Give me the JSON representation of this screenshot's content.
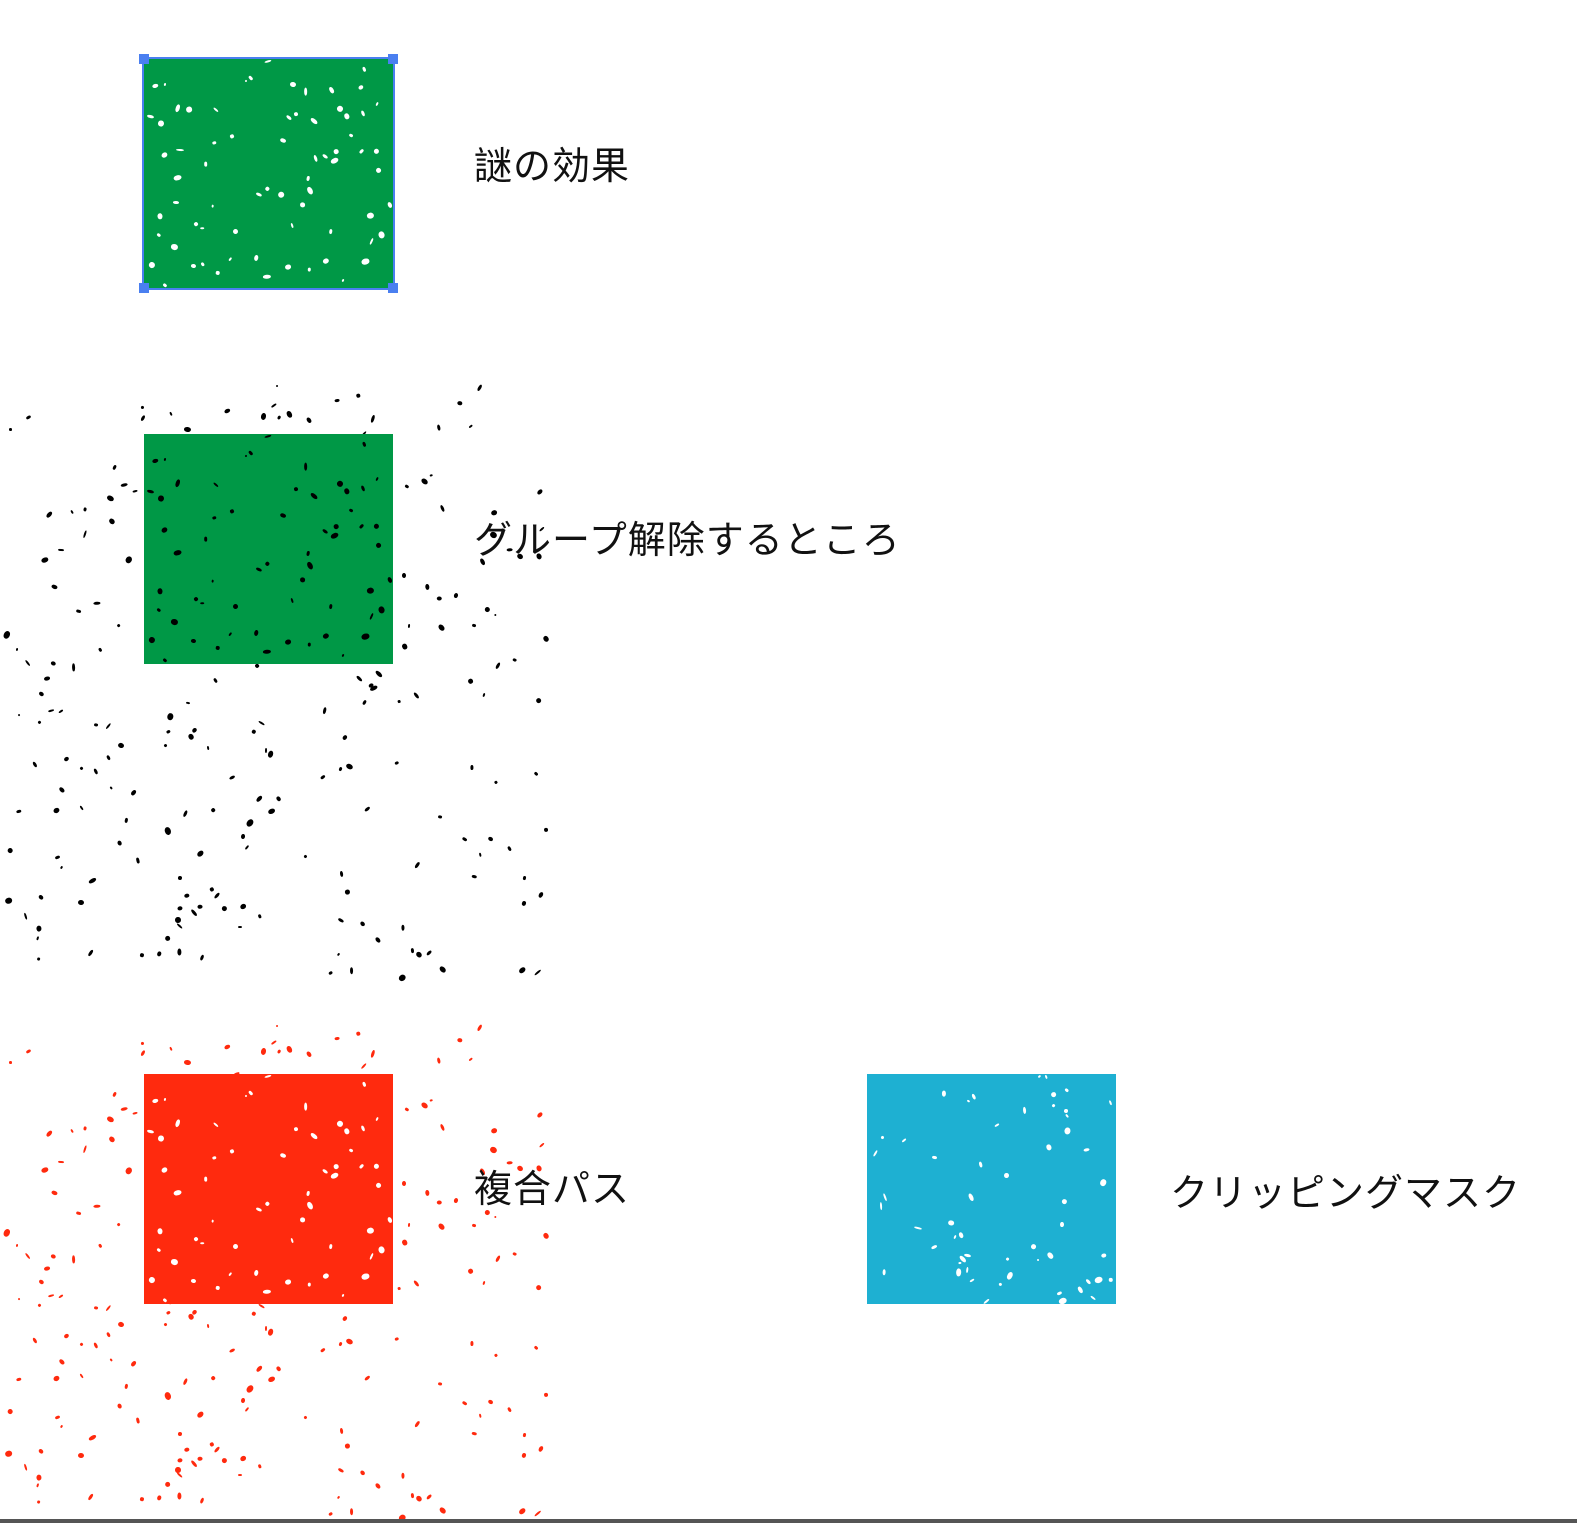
{
  "canvas": {
    "objects": [
      {
        "label": "謎の効果",
        "color": "#009846",
        "speck_color": "#ffffff",
        "selected": true
      },
      {
        "label": "グループ解除するところ",
        "color": "#009846",
        "speck_color": "#000000",
        "selected": false
      },
      {
        "label": "複合パス",
        "color": "#ff2a0e",
        "speck_color": "#ff2a0e",
        "selected": false
      },
      {
        "label": "クリッピングマスク",
        "color": "#1eb0d2",
        "speck_color": "#ffffff",
        "selected": false
      }
    ],
    "selection_color": "#4a7ff0"
  }
}
